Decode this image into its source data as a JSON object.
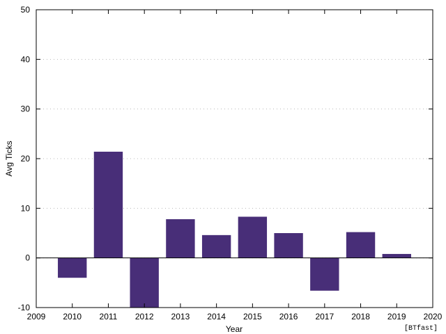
{
  "chart_data": {
    "type": "bar",
    "xlabel": "Year",
    "ylabel": "Avg Ticks",
    "footer": "[BTfast]",
    "xlim": [
      2009,
      2020
    ],
    "ylim": [
      -10,
      50
    ],
    "x_ticks": [
      2009,
      2010,
      2011,
      2012,
      2013,
      2014,
      2015,
      2016,
      2017,
      2018,
      2019,
      2020
    ],
    "y_ticks": [
      -10,
      0,
      10,
      20,
      30,
      40,
      50
    ],
    "grid": true,
    "bar_width": 0.8,
    "bar_color": "#482e78",
    "categories": [
      2010,
      2011,
      2012,
      2013,
      2014,
      2015,
      2016,
      2017,
      2018,
      2019
    ],
    "values": [
      -4.0,
      21.4,
      -10.0,
      7.8,
      4.6,
      8.3,
      5.0,
      -6.6,
      5.2,
      0.8
    ]
  }
}
